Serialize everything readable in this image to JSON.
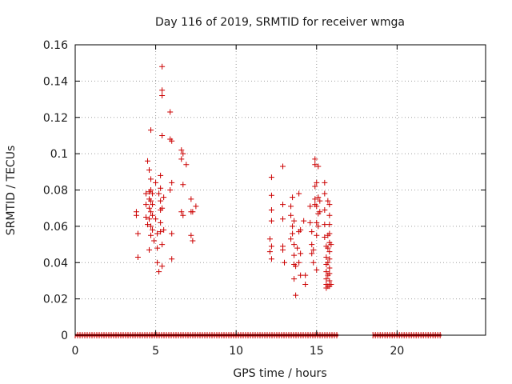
{
  "chart_data": {
    "type": "scatter",
    "title": "Day 116 of 2019, SRMTID for receiver wmga",
    "xlabel": "GPS time / hours",
    "ylabel": "SRMTID / TECUs",
    "xlim": [
      0,
      25.5
    ],
    "ylim": [
      0,
      0.16
    ],
    "x_ticks": [
      0,
      5,
      10,
      15,
      20
    ],
    "x_tick_labels": [
      "0",
      "5",
      "10",
      "15",
      "20"
    ],
    "y_ticks": [
      0,
      0.02,
      0.04,
      0.06,
      0.08,
      0.1,
      0.12,
      0.14,
      0.16
    ],
    "y_tick_labels": [
      "0",
      "0.02",
      "0.04",
      "0.06",
      "0.08",
      "0.1",
      "0.12",
      "0.14",
      "0.16"
    ],
    "grid": true,
    "marker": "plus",
    "color": "#cc0000",
    "zero_bands": [
      [
        0.0,
        16.35
      ],
      [
        18.5,
        22.75
      ]
    ],
    "series": [
      {
        "name": "SRMTID",
        "points": [
          [
            3.8,
            0.068
          ],
          [
            3.8,
            0.066
          ],
          [
            3.9,
            0.056
          ],
          [
            3.9,
            0.043
          ],
          [
            4.4,
            0.078
          ],
          [
            4.4,
            0.072
          ],
          [
            4.4,
            0.065
          ],
          [
            4.5,
            0.061
          ],
          [
            4.5,
            0.096
          ],
          [
            4.6,
            0.091
          ],
          [
            4.6,
            0.079
          ],
          [
            4.6,
            0.075
          ],
          [
            4.6,
            0.07
          ],
          [
            4.6,
            0.064
          ],
          [
            4.7,
            0.113
          ],
          [
            4.7,
            0.086
          ],
          [
            4.7,
            0.08
          ],
          [
            4.7,
            0.074
          ],
          [
            4.7,
            0.068
          ],
          [
            4.7,
            0.06
          ],
          [
            4.7,
            0.055
          ],
          [
            4.6,
            0.047
          ],
          [
            4.8,
            0.078
          ],
          [
            4.8,
            0.072
          ],
          [
            4.8,
            0.066
          ],
          [
            4.8,
            0.058
          ],
          [
            4.9,
            0.052
          ],
          [
            5.0,
            0.084
          ],
          [
            5.0,
            0.064
          ],
          [
            5.1,
            0.056
          ],
          [
            5.1,
            0.048
          ],
          [
            5.1,
            0.04
          ],
          [
            5.2,
            0.035
          ],
          [
            5.2,
            0.078
          ],
          [
            5.3,
            0.088
          ],
          [
            5.3,
            0.081
          ],
          [
            5.3,
            0.074
          ],
          [
            5.3,
            0.069
          ],
          [
            5.3,
            0.062
          ],
          [
            5.3,
            0.057
          ],
          [
            5.4,
            0.148
          ],
          [
            5.4,
            0.135
          ],
          [
            5.4,
            0.132
          ],
          [
            5.4,
            0.11
          ],
          [
            5.4,
            0.07
          ],
          [
            5.4,
            0.05
          ],
          [
            5.4,
            0.038
          ],
          [
            5.5,
            0.076
          ],
          [
            5.5,
            0.058
          ],
          [
            5.9,
            0.123
          ],
          [
            5.9,
            0.108
          ],
          [
            6.0,
            0.107
          ],
          [
            6.0,
            0.084
          ],
          [
            5.9,
            0.08
          ],
          [
            6.0,
            0.056
          ],
          [
            6.0,
            0.042
          ],
          [
            6.6,
            0.102
          ],
          [
            6.6,
            0.097
          ],
          [
            6.7,
            0.1
          ],
          [
            6.6,
            0.068
          ],
          [
            6.7,
            0.083
          ],
          [
            6.7,
            0.066
          ],
          [
            6.9,
            0.094
          ],
          [
            7.2,
            0.075
          ],
          [
            7.2,
            0.068
          ],
          [
            7.2,
            0.055
          ],
          [
            7.3,
            0.052
          ],
          [
            7.3,
            0.068
          ],
          [
            7.5,
            0.071
          ],
          [
            12.1,
            0.053
          ],
          [
            12.1,
            0.046
          ],
          [
            12.2,
            0.042
          ],
          [
            12.2,
            0.087
          ],
          [
            12.2,
            0.077
          ],
          [
            12.2,
            0.069
          ],
          [
            12.2,
            0.063
          ],
          [
            12.2,
            0.049
          ],
          [
            12.9,
            0.093
          ],
          [
            12.9,
            0.072
          ],
          [
            12.9,
            0.064
          ],
          [
            12.9,
            0.049
          ],
          [
            12.9,
            0.047
          ],
          [
            13.0,
            0.04
          ],
          [
            13.4,
            0.071
          ],
          [
            13.4,
            0.066
          ],
          [
            13.5,
            0.076
          ],
          [
            13.5,
            0.06
          ],
          [
            13.4,
            0.053
          ],
          [
            13.5,
            0.056
          ],
          [
            13.6,
            0.063
          ],
          [
            13.6,
            0.05
          ],
          [
            13.6,
            0.044
          ],
          [
            13.6,
            0.039
          ],
          [
            13.6,
            0.031
          ],
          [
            13.7,
            0.022
          ],
          [
            13.7,
            0.038
          ],
          [
            13.8,
            0.048
          ],
          [
            13.9,
            0.078
          ],
          [
            13.9,
            0.057
          ],
          [
            13.9,
            0.04
          ],
          [
            14.0,
            0.058
          ],
          [
            14.0,
            0.045
          ],
          [
            14.0,
            0.033
          ],
          [
            14.2,
            0.063
          ],
          [
            14.3,
            0.028
          ],
          [
            14.3,
            0.033
          ],
          [
            14.6,
            0.071
          ],
          [
            14.6,
            0.062
          ],
          [
            14.7,
            0.057
          ],
          [
            14.7,
            0.05
          ],
          [
            14.7,
            0.045
          ],
          [
            14.8,
            0.047
          ],
          [
            14.8,
            0.04
          ],
          [
            14.9,
            0.097
          ],
          [
            14.9,
            0.094
          ],
          [
            14.9,
            0.082
          ],
          [
            14.9,
            0.075
          ],
          [
            14.9,
            0.072
          ],
          [
            15.0,
            0.084
          ],
          [
            15.0,
            0.071
          ],
          [
            15.0,
            0.062
          ],
          [
            15.0,
            0.055
          ],
          [
            15.0,
            0.036
          ],
          [
            15.1,
            0.093
          ],
          [
            15.1,
            0.076
          ],
          [
            15.1,
            0.067
          ],
          [
            15.1,
            0.06
          ],
          [
            15.2,
            0.074
          ],
          [
            15.2,
            0.068
          ],
          [
            15.5,
            0.084
          ],
          [
            15.5,
            0.078
          ],
          [
            15.5,
            0.069
          ],
          [
            15.5,
            0.061
          ],
          [
            15.5,
            0.054
          ],
          [
            15.6,
            0.049
          ],
          [
            15.6,
            0.043
          ],
          [
            15.6,
            0.039
          ],
          [
            15.6,
            0.035
          ],
          [
            15.6,
            0.031
          ],
          [
            15.6,
            0.028
          ],
          [
            15.6,
            0.026
          ],
          [
            15.7,
            0.074
          ],
          [
            15.7,
            0.055
          ],
          [
            15.7,
            0.048
          ],
          [
            15.7,
            0.04
          ],
          [
            15.7,
            0.033
          ],
          [
            15.7,
            0.027
          ],
          [
            15.8,
            0.072
          ],
          [
            15.8,
            0.066
          ],
          [
            15.8,
            0.061
          ],
          [
            15.8,
            0.056
          ],
          [
            15.8,
            0.051
          ],
          [
            15.8,
            0.046
          ],
          [
            15.8,
            0.042
          ],
          [
            15.8,
            0.037
          ],
          [
            15.8,
            0.034
          ],
          [
            15.8,
            0.03
          ],
          [
            15.8,
            0.027
          ],
          [
            15.9,
            0.05
          ],
          [
            15.9,
            0.028
          ]
        ]
      }
    ]
  }
}
